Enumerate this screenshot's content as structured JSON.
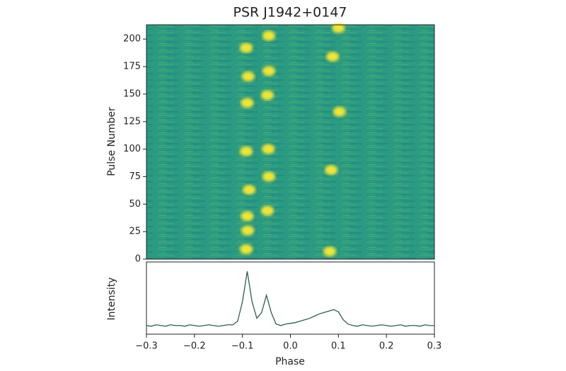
{
  "chart_data": [
    {
      "type": "scatter",
      "title": "PSR J1942+0147",
      "ylabel": "Pulse Number",
      "x": [
        -0.092,
        -0.089,
        -0.09,
        -0.086,
        -0.092,
        -0.09,
        -0.088,
        -0.092,
        -0.046,
        -0.045,
        -0.048,
        -0.048,
        -0.045,
        -0.045,
        0.082,
        0.085,
        0.102,
        0.088,
        0.1
      ],
      "y": [
        9,
        26,
        39,
        63,
        98,
        142,
        166,
        192,
        100,
        75,
        44,
        149,
        171,
        203,
        7,
        81,
        134,
        184,
        210
      ],
      "color": "#f2e530",
      "background": "#2a9a80",
      "xlim": [
        -0.3,
        0.3
      ],
      "ylim": [
        0,
        213
      ],
      "yticks": [
        0,
        25,
        50,
        75,
        100,
        125,
        150,
        175,
        200
      ]
    },
    {
      "type": "line",
      "xlabel": "Phase",
      "ylabel": "Intensity",
      "color": "#2e5e55",
      "x": [
        -0.3,
        -0.29,
        -0.28,
        -0.27,
        -0.26,
        -0.25,
        -0.24,
        -0.23,
        -0.22,
        -0.21,
        -0.2,
        -0.19,
        -0.18,
        -0.17,
        -0.16,
        -0.15,
        -0.14,
        -0.13,
        -0.12,
        -0.11,
        -0.1,
        -0.09,
        -0.08,
        -0.07,
        -0.06,
        -0.05,
        -0.04,
        -0.03,
        -0.02,
        -0.01,
        0,
        0.01,
        0.02,
        0.03,
        0.04,
        0.05,
        0.06,
        0.07,
        0.08,
        0.09,
        0.1,
        0.11,
        0.12,
        0.13,
        0.14,
        0.15,
        0.16,
        0.17,
        0.18,
        0.19,
        0.2,
        0.21,
        0.22,
        0.23,
        0.24,
        0.25,
        0.26,
        0.27,
        0.28,
        0.29,
        0.3
      ],
      "values": [
        0.12,
        0.11,
        0.13,
        0.12,
        0.11,
        0.13,
        0.12,
        0.12,
        0.11,
        0.13,
        0.12,
        0.11,
        0.12,
        0.13,
        0.12,
        0.11,
        0.12,
        0.13,
        0.13,
        0.18,
        0.45,
        0.87,
        0.45,
        0.22,
        0.3,
        0.54,
        0.3,
        0.14,
        0.12,
        0.14,
        0.15,
        0.16,
        0.18,
        0.2,
        0.22,
        0.25,
        0.28,
        0.3,
        0.32,
        0.34,
        0.31,
        0.2,
        0.14,
        0.12,
        0.11,
        0.13,
        0.12,
        0.11,
        0.12,
        0.13,
        0.12,
        0.11,
        0.12,
        0.13,
        0.11,
        0.12,
        0.12,
        0.11,
        0.13,
        0.12,
        0.12
      ],
      "xlim": [
        -0.3,
        0.3
      ],
      "ylim": [
        0,
        1
      ],
      "xticks": [
        {
          "value": -0.3,
          "label": "−0.3"
        },
        {
          "value": -0.2,
          "label": "−0.2"
        },
        {
          "value": -0.1,
          "label": "−0.1"
        },
        {
          "value": 0,
          "label": "0.0"
        },
        0.1,
        0.2,
        0.3
      ]
    }
  ]
}
